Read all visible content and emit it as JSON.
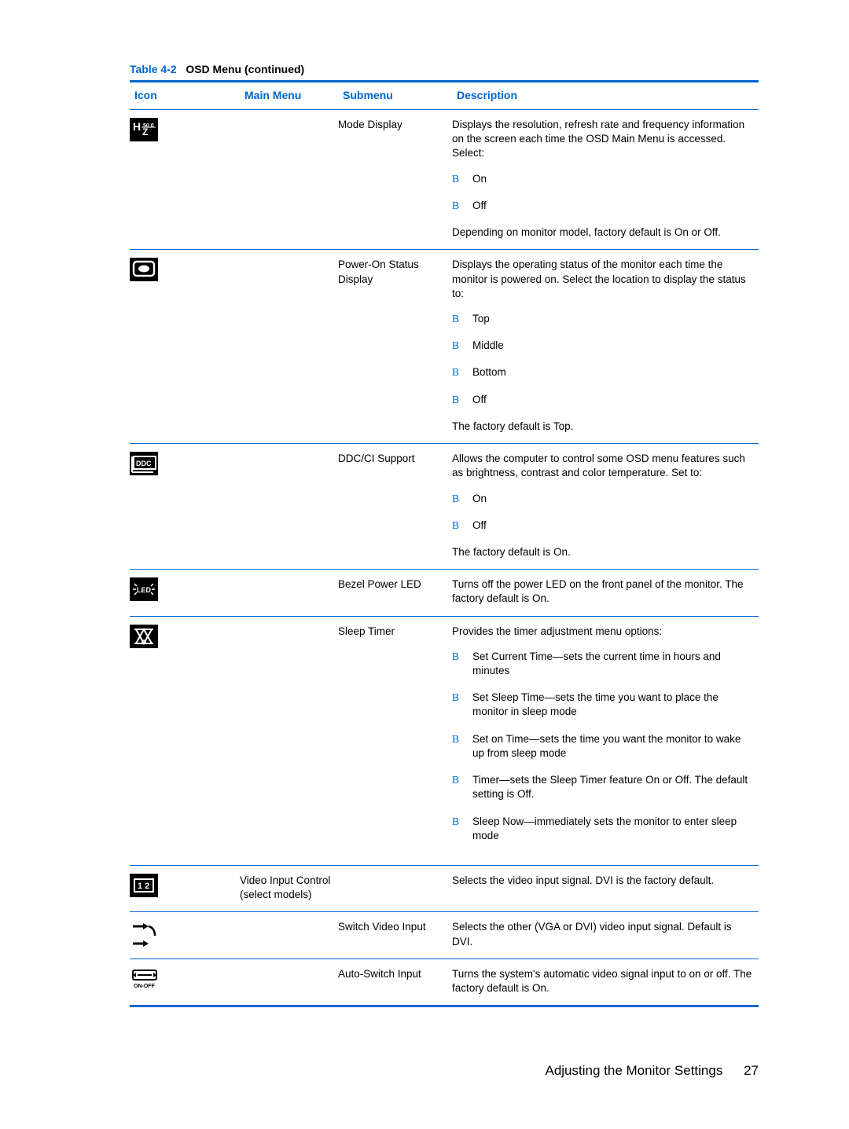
{
  "caption": {
    "label": "Table 4-2",
    "title": "OSD Menu (continued)"
  },
  "headers": {
    "icon": "Icon",
    "main": "Main Menu",
    "submenu": "Submenu",
    "desc": "Description"
  },
  "rows": [
    {
      "icon": "mode-display-icon",
      "main": "",
      "submenu": "Mode Display",
      "desc_intro": "Displays the resolution, refresh rate and frequency information on the screen each time the OSD Main Menu is accessed. Select:",
      "options": [
        "On",
        "Off"
      ],
      "desc_note": "Depending on monitor model, factory default is On or Off."
    },
    {
      "icon": "power-on-status-icon",
      "main": "",
      "submenu": "Power-On Status Display",
      "desc_intro": "Displays the operating status of the monitor each time the monitor is powered on. Select the location to display the status to:",
      "options": [
        "Top",
        "Middle",
        "Bottom",
        "Off"
      ],
      "desc_note": "The factory default is Top."
    },
    {
      "icon": "ddc-ci-icon",
      "main": "",
      "submenu": "DDC/CI Support",
      "desc_intro": "Allows the computer to control some OSD menu features such as brightness, contrast and color temperature. Set to:",
      "options": [
        "On",
        "Off"
      ],
      "desc_note": "The factory default is On."
    },
    {
      "icon": "bezel-led-icon",
      "main": "",
      "submenu": "Bezel Power LED",
      "desc_intro": "Turns off the power LED on the front panel of the monitor. The factory default is On.",
      "options": [],
      "desc_note": ""
    },
    {
      "icon": "sleep-timer-icon",
      "main": "",
      "submenu": "Sleep Timer",
      "desc_intro": "Provides the timer adjustment menu options:",
      "options": [
        "Set Current Time—sets the current time in hours and minutes",
        "Set Sleep Time—sets the time you want to place the monitor in sleep mode",
        "Set on Time—sets the time you want the monitor to wake up from sleep mode",
        "Timer—sets the Sleep Timer feature On or Off. The default setting is Off.",
        "Sleep Now—immediately sets the monitor to enter sleep mode"
      ],
      "desc_note": ""
    },
    {
      "icon": "video-input-icon",
      "main": "Video Input Control (select models)",
      "submenu": "",
      "desc_intro": "Selects the video input signal. DVI is the factory default.",
      "options": [],
      "desc_note": ""
    },
    {
      "icon": "switch-input-icon",
      "main": "",
      "submenu": "Switch Video Input",
      "desc_intro": "Selects the other (VGA or DVI) video input signal. Default is DVI.",
      "options": [],
      "desc_note": ""
    },
    {
      "icon": "auto-switch-icon",
      "main": "",
      "submenu": "Auto-Switch Input",
      "desc_intro": "Turns the system's automatic video signal input to on or off. The factory default is On.",
      "options": [],
      "desc_note": ""
    }
  ],
  "footer": {
    "section": "Adjusting the Monitor Settings",
    "page": "27"
  },
  "colors": {
    "accent": "#0066cc",
    "text": "#000000",
    "bg": "#ffffff"
  }
}
